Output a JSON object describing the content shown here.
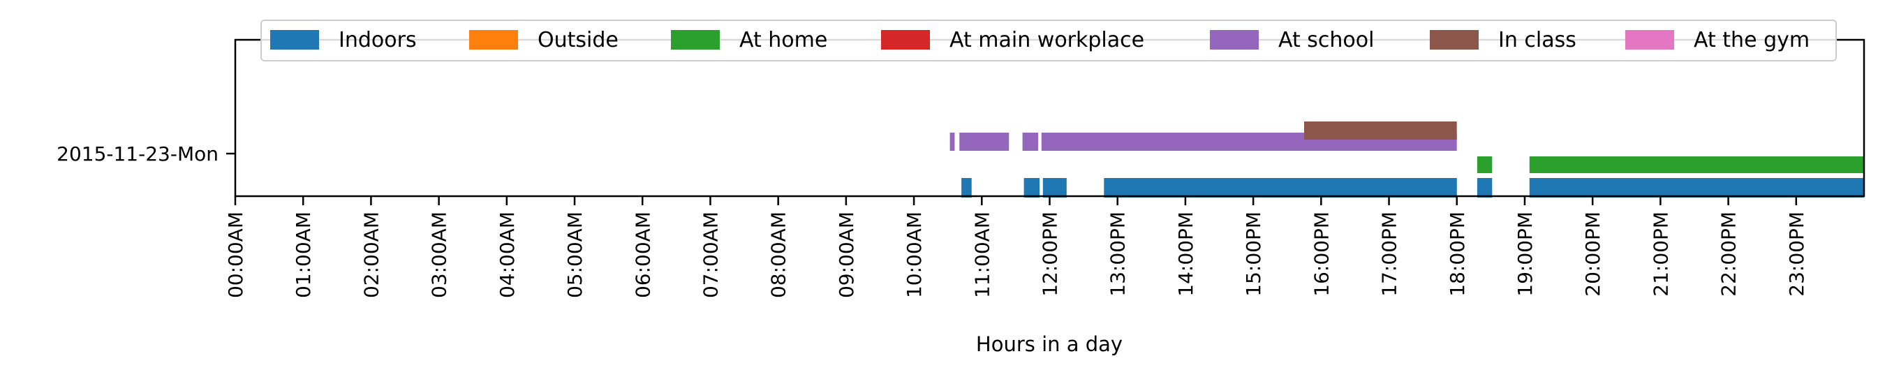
{
  "chart_data": {
    "type": "timeline",
    "title": "",
    "xlabel": "Hours in a day",
    "ylabel": "",
    "x_range_hours": [
      0,
      24
    ],
    "x_ticks": [
      "00:00AM",
      "01:00AM",
      "02:00AM",
      "03:00AM",
      "04:00AM",
      "05:00AM",
      "06:00AM",
      "07:00AM",
      "08:00AM",
      "09:00AM",
      "10:00AM",
      "11:00AM",
      "12:00PM",
      "13:00PM",
      "14:00PM",
      "15:00PM",
      "16:00PM",
      "17:00PM",
      "18:00PM",
      "19:00PM",
      "20:00PM",
      "21:00PM",
      "22:00PM",
      "23:00PM"
    ],
    "y_ticks": [
      "2015-11-23-Mon"
    ],
    "legend_position": "top",
    "grid": false,
    "series": [
      {
        "name": "Indoors",
        "color": "#1f77b4",
        "intervals": [
          [
            10.7,
            10.85
          ],
          [
            11.62,
            11.85
          ],
          [
            11.9,
            12.25
          ],
          [
            12.8,
            18.0
          ],
          [
            18.3,
            18.52
          ],
          [
            19.07,
            24.0
          ]
        ]
      },
      {
        "name": "Outside",
        "color": "#ff7f0e",
        "intervals": []
      },
      {
        "name": "At home",
        "color": "#2ca02c",
        "intervals": [
          [
            18.3,
            18.52
          ],
          [
            19.07,
            24.0
          ]
        ]
      },
      {
        "name": "At main workplace",
        "color": "#d62728",
        "intervals": []
      },
      {
        "name": "At school",
        "color": "#9467bd",
        "intervals": [
          [
            10.53,
            10.6
          ],
          [
            10.67,
            11.4
          ],
          [
            11.6,
            11.83
          ],
          [
            11.88,
            18.0
          ]
        ]
      },
      {
        "name": "In class",
        "color": "#8c564b",
        "intervals": [
          [
            15.75,
            18.0
          ]
        ]
      },
      {
        "name": "At the gym",
        "color": "#e377c2",
        "intervals": []
      }
    ]
  }
}
